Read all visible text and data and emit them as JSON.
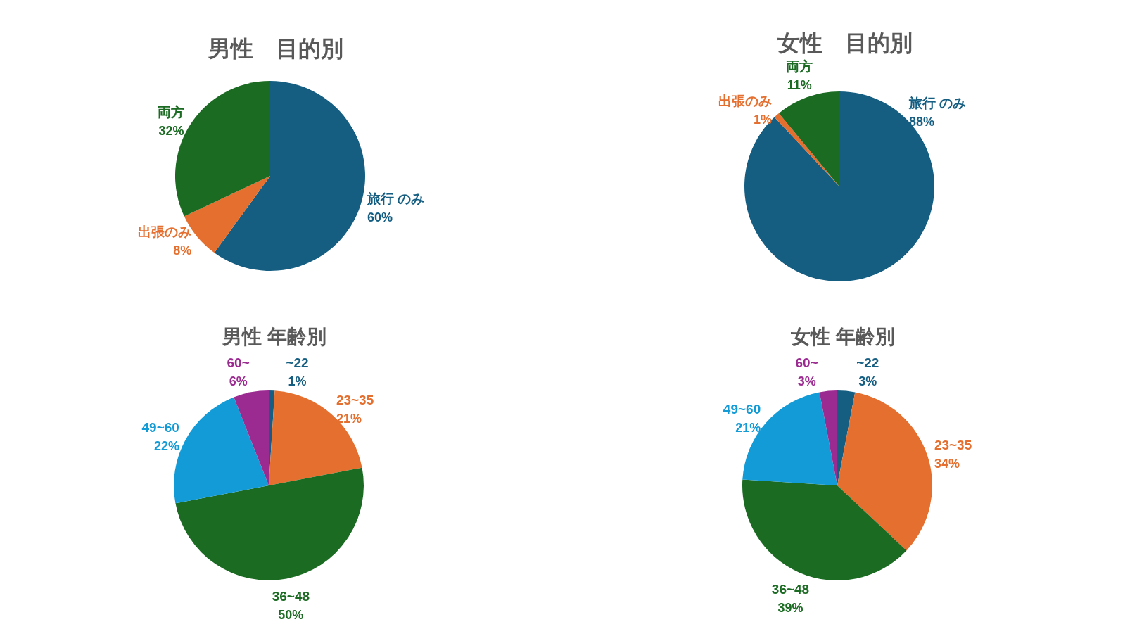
{
  "chart_data": [
    {
      "type": "pie",
      "title": "男性　目的別",
      "categories": [
        "旅行 のみ",
        "出張のみ",
        "両方"
      ],
      "values": [
        60,
        8,
        32
      ],
      "value_labels": [
        "60%",
        "8%",
        "32%"
      ],
      "colors": [
        "#155e82",
        "#e46f2e",
        "#1b6b23"
      ]
    },
    {
      "type": "pie",
      "title": "女性　目的別",
      "categories": [
        "旅行 のみ",
        "出張のみ",
        "両方"
      ],
      "values": [
        88,
        1,
        11
      ],
      "value_labels": [
        "88%",
        "1%",
        "11%"
      ],
      "colors": [
        "#155e82",
        "#e46f2e",
        "#1b6b23"
      ]
    },
    {
      "type": "pie",
      "title": "男性 年齢別",
      "categories": [
        "~22",
        "23~35",
        "36~48",
        "49~60",
        "60~"
      ],
      "values": [
        1,
        21,
        50,
        22,
        6
      ],
      "value_labels": [
        "1%",
        "21%",
        "50%",
        "22%",
        "6%"
      ],
      "colors": [
        "#155e82",
        "#e46f2e",
        "#1b6b23",
        "#129bd6",
        "#9b2a91"
      ]
    },
    {
      "type": "pie",
      "title": "女性 年齢別",
      "categories": [
        "~22",
        "23~35",
        "36~48",
        "49~60",
        "60~"
      ],
      "values": [
        3,
        34,
        39,
        21,
        3
      ],
      "value_labels": [
        "3%",
        "34%",
        "39%",
        "21%",
        "3%"
      ],
      "colors": [
        "#155e82",
        "#e46f2e",
        "#1b6b23",
        "#129bd6",
        "#9b2a91"
      ]
    }
  ]
}
